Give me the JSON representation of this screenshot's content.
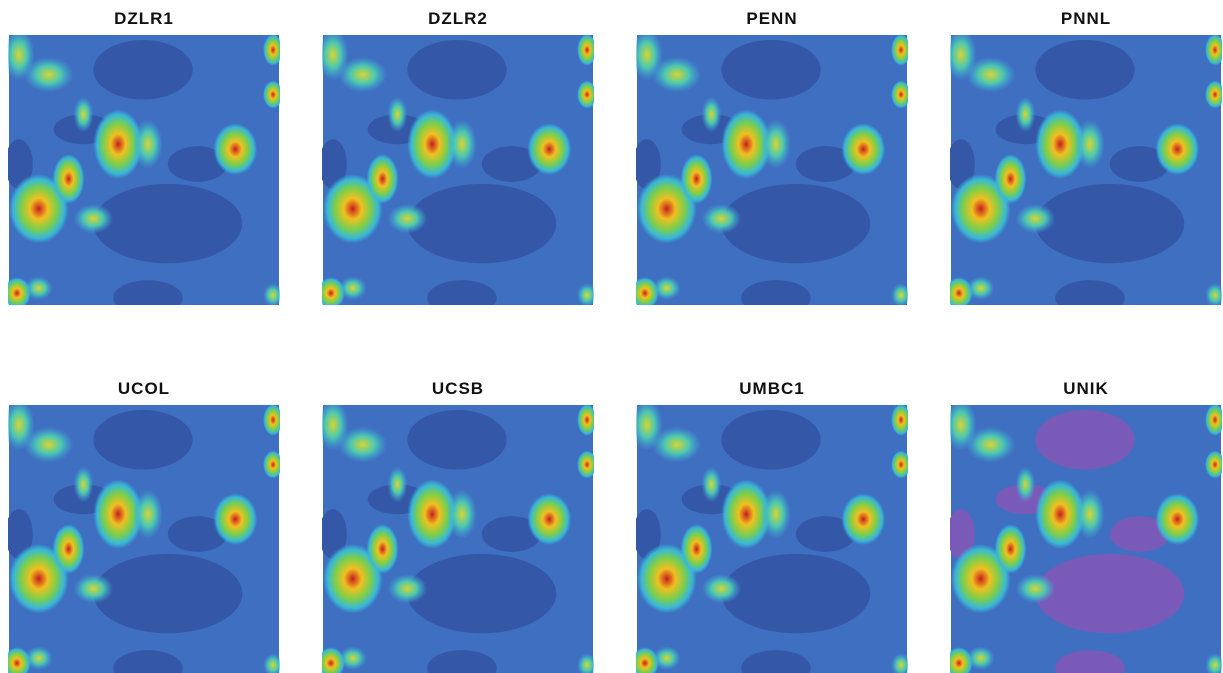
{
  "panels": [
    {
      "title": "DZLR1"
    },
    {
      "title": "DZLR2"
    },
    {
      "title": "PENN"
    },
    {
      "title": "PNNL"
    },
    {
      "title": "UCOL"
    },
    {
      "title": "UCSB"
    },
    {
      "title": "UMBC1"
    },
    {
      "title": "UNIK"
    }
  ]
}
